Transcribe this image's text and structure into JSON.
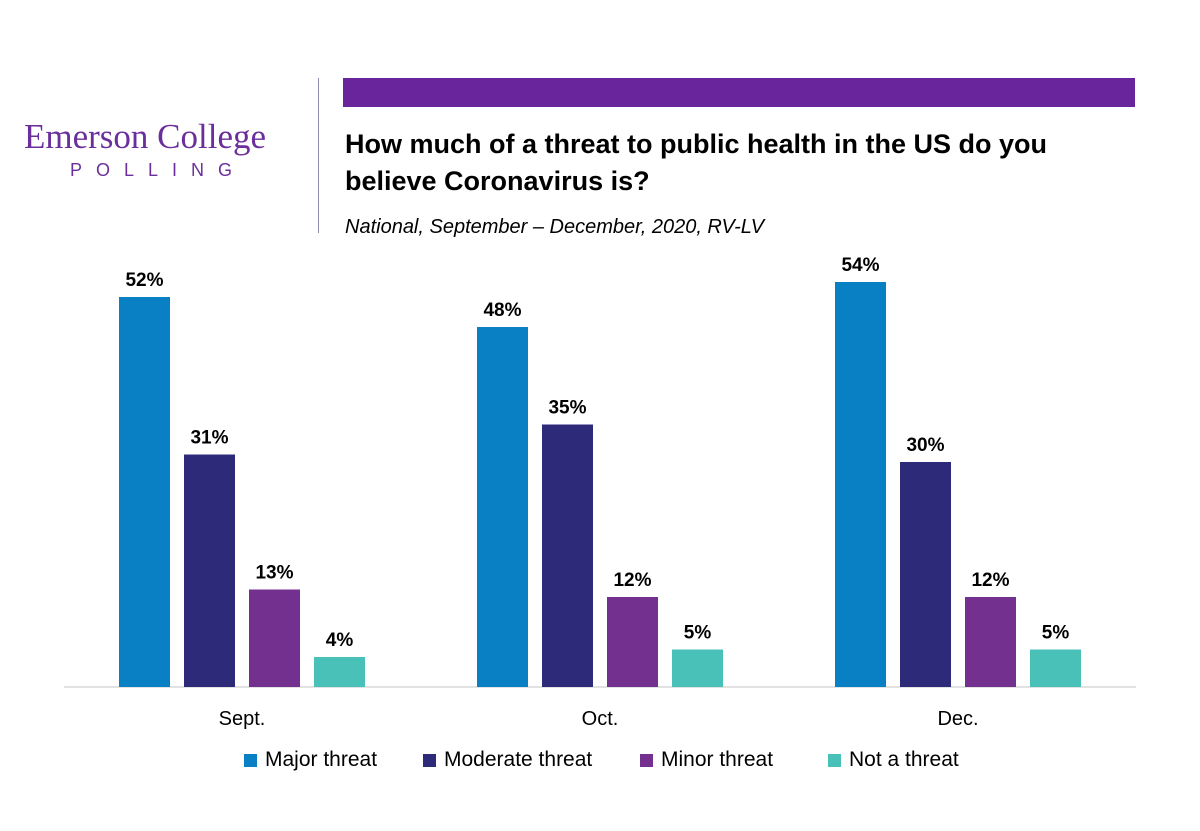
{
  "logo": {
    "line1": "Emerson College",
    "line2": "POLLING"
  },
  "colors": {
    "accent_bar": "#68259c",
    "logo": "#6b2f9c",
    "axis": "#d9d9d9"
  },
  "chart_data": {
    "type": "bar",
    "title": "How much of a threat to public health in the US do you believe Coronavirus is?",
    "subtitle": "National, September – December, 2020, RV-LV",
    "categories": [
      "Sept.",
      "Oct.",
      "Dec."
    ],
    "series": [
      {
        "name": "Major threat",
        "color": "#0a80c4",
        "values": [
          52,
          48,
          54
        ],
        "labels": [
          "52%",
          "48%",
          "54%"
        ]
      },
      {
        "name": "Moderate threat",
        "color": "#2e2a7a",
        "values": [
          31,
          35,
          30
        ],
        "labels": [
          "31%",
          "35%",
          "30%"
        ]
      },
      {
        "name": "Minor threat",
        "color": "#74308e",
        "values": [
          13,
          12,
          12
        ],
        "labels": [
          "13%",
          "12%",
          "12%"
        ]
      },
      {
        "name": "Not a threat",
        "color": "#49c1b9",
        "values": [
          4,
          5,
          5
        ],
        "labels": [
          "4%",
          "5%",
          "5%"
        ]
      }
    ],
    "value_unit": "%",
    "ylim": [
      0,
      60
    ],
    "grid": false,
    "legend_position": "bottom"
  }
}
